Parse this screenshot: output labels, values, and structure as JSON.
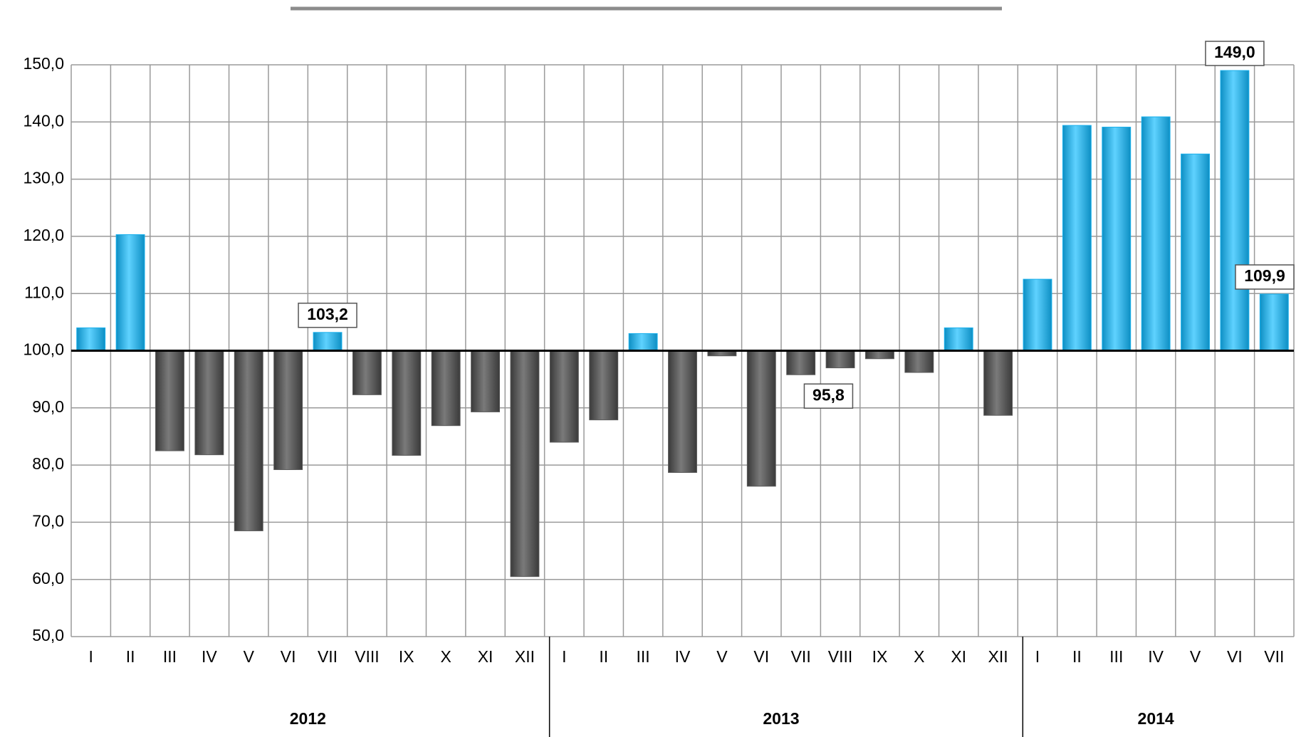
{
  "chart_data": {
    "type": "bar",
    "categories": [
      "I",
      "II",
      "III",
      "IV",
      "V",
      "VI",
      "VII",
      "VIII",
      "IX",
      "X",
      "XI",
      "XII",
      "I",
      "II",
      "III",
      "IV",
      "V",
      "VI",
      "VII",
      "VIII",
      "IX",
      "X",
      "XI",
      "XII",
      "I",
      "II",
      "III",
      "IV",
      "V",
      "VI",
      "VII"
    ],
    "values": [
      104.0,
      120.3,
      82.5,
      81.8,
      68.5,
      79.2,
      103.2,
      92.3,
      81.7,
      86.9,
      89.3,
      60.5,
      84.0,
      87.9,
      103.0,
      78.7,
      99.1,
      76.3,
      95.8,
      97.0,
      98.6,
      96.2,
      104.0,
      88.7,
      112.5,
      139.4,
      139.1,
      140.9,
      134.4,
      149.0,
      109.9
    ],
    "value_labels": [
      null,
      null,
      null,
      null,
      null,
      null,
      "103,2",
      null,
      null,
      null,
      null,
      null,
      null,
      null,
      null,
      null,
      null,
      null,
      "95,8",
      null,
      null,
      null,
      null,
      null,
      null,
      null,
      null,
      null,
      null,
      "149,0",
      "109,9"
    ],
    "groups": [
      {
        "label": "2012",
        "size": 12
      },
      {
        "label": "2013",
        "size": 12
      },
      {
        "label": "2014",
        "size": 7
      }
    ],
    "baseline": 100,
    "color_above": "#1ab0ec",
    "color_below": "#595959",
    "ylim": [
      50,
      150
    ],
    "yticks": [
      {
        "value": 50,
        "label": "50,0"
      },
      {
        "value": 60,
        "label": "60,0"
      },
      {
        "value": 70,
        "label": "70,0"
      },
      {
        "value": 80,
        "label": "80,0"
      },
      {
        "value": 90,
        "label": "90,0"
      },
      {
        "value": 100,
        "label": "100,0"
      },
      {
        "value": 110,
        "label": "110,0"
      },
      {
        "value": 120,
        "label": "120,0"
      },
      {
        "value": 130,
        "label": "130,0"
      },
      {
        "value": 140,
        "label": "140,0"
      },
      {
        "value": 150,
        "label": "150,0"
      }
    ],
    "grid": true
  }
}
